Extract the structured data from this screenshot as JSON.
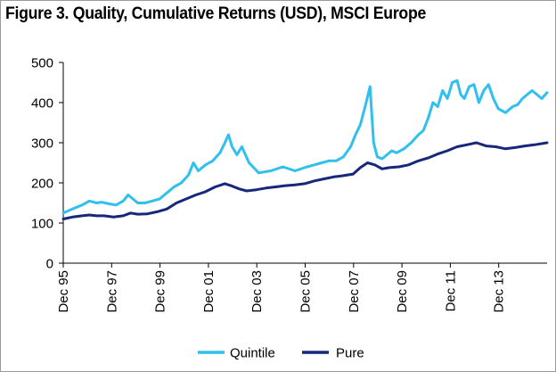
{
  "chart_data": {
    "type": "line",
    "title": "Figure 3. Quality, Cumulative Returns (USD), MSCI Europe",
    "xlabel": "",
    "ylabel": "",
    "ylim": [
      0,
      500
    ],
    "yticks": [
      0,
      100,
      200,
      300,
      400,
      500
    ],
    "xlim": [
      1995.92,
      2015.92
    ],
    "xticks": [
      {
        "label": "Dec 95",
        "x": 1995.92
      },
      {
        "label": "Dec 97",
        "x": 1997.92
      },
      {
        "label": "Dec 99",
        "x": 1999.92
      },
      {
        "label": "Dec 01",
        "x": 2001.92
      },
      {
        "label": "Dec 03",
        "x": 2003.92
      },
      {
        "label": "Dec 05",
        "x": 2005.92
      },
      {
        "label": "Dec 07",
        "x": 2007.92
      },
      {
        "label": "Dec 09",
        "x": 2009.92
      },
      {
        "label": "Dec 11",
        "x": 2011.92
      },
      {
        "label": "Dec 13",
        "x": 2013.92
      }
    ],
    "grid": false,
    "legend_position": "bottom-center",
    "series": [
      {
        "name": "Quintile",
        "color": "#2fc0ee",
        "x": [
          1995.92,
          1996.3,
          1996.7,
          1997.0,
          1997.3,
          1997.5,
          1997.8,
          1998.1,
          1998.4,
          1998.6,
          1998.8,
          1999.0,
          1999.3,
          1999.6,
          1999.9,
          2000.2,
          2000.5,
          2000.8,
          2001.1,
          2001.3,
          2001.5,
          2001.8,
          2002.1,
          2002.4,
          2002.6,
          2002.75,
          2002.9,
          2003.1,
          2003.3,
          2003.6,
          2004.0,
          2004.5,
          2005.0,
          2005.5,
          2006.0,
          2006.3,
          2006.6,
          2006.9,
          2007.2,
          2007.5,
          2007.8,
          2008.0,
          2008.2,
          2008.4,
          2008.6,
          2008.75,
          2008.9,
          2009.1,
          2009.3,
          2009.5,
          2009.7,
          2010.0,
          2010.3,
          2010.6,
          2010.8,
          2011.0,
          2011.2,
          2011.4,
          2011.6,
          2011.8,
          2012.0,
          2012.2,
          2012.35,
          2012.5,
          2012.7,
          2012.9,
          2013.1,
          2013.3,
          2013.5,
          2013.7,
          2013.9,
          2014.2,
          2014.5,
          2014.7,
          2014.9,
          2015.1,
          2015.3,
          2015.5,
          2015.7,
          2015.92
        ],
        "values": [
          125,
          135,
          145,
          155,
          150,
          152,
          148,
          145,
          155,
          170,
          160,
          150,
          150,
          155,
          160,
          175,
          190,
          200,
          220,
          250,
          230,
          245,
          255,
          275,
          300,
          320,
          290,
          270,
          290,
          250,
          225,
          230,
          240,
          230,
          240,
          245,
          250,
          255,
          255,
          265,
          290,
          320,
          345,
          390,
          440,
          300,
          265,
          260,
          270,
          280,
          275,
          285,
          300,
          320,
          330,
          360,
          400,
          390,
          430,
          410,
          450,
          455,
          420,
          410,
          440,
          445,
          400,
          430,
          445,
          410,
          385,
          375,
          390,
          395,
          410,
          420,
          430,
          420,
          410,
          425
        ]
      },
      {
        "name": "Pure",
        "color": "#17287a",
        "x": [
          1995.92,
          1996.3,
          1996.7,
          1997.0,
          1997.3,
          1997.6,
          1998.0,
          1998.4,
          1998.7,
          1999.0,
          1999.4,
          1999.8,
          2000.2,
          2000.6,
          2001.0,
          2001.4,
          2001.8,
          2002.2,
          2002.6,
          2002.9,
          2003.2,
          2003.5,
          2003.9,
          2004.3,
          2004.7,
          2005.1,
          2005.5,
          2005.9,
          2006.3,
          2006.7,
          2007.1,
          2007.5,
          2007.9,
          2008.2,
          2008.5,
          2008.8,
          2009.1,
          2009.4,
          2009.8,
          2010.2,
          2010.6,
          2011.0,
          2011.4,
          2011.8,
          2012.2,
          2012.6,
          2013.0,
          2013.4,
          2013.8,
          2014.2,
          2014.6,
          2015.0,
          2015.4,
          2015.92
        ],
        "values": [
          110,
          115,
          118,
          120,
          118,
          118,
          115,
          118,
          125,
          122,
          123,
          128,
          135,
          150,
          160,
          170,
          178,
          190,
          198,
          192,
          185,
          180,
          183,
          187,
          190,
          193,
          195,
          198,
          205,
          210,
          215,
          218,
          222,
          238,
          250,
          245,
          235,
          238,
          240,
          245,
          255,
          262,
          272,
          280,
          290,
          295,
          300,
          292,
          290,
          285,
          288,
          292,
          295,
          300
        ]
      }
    ]
  }
}
